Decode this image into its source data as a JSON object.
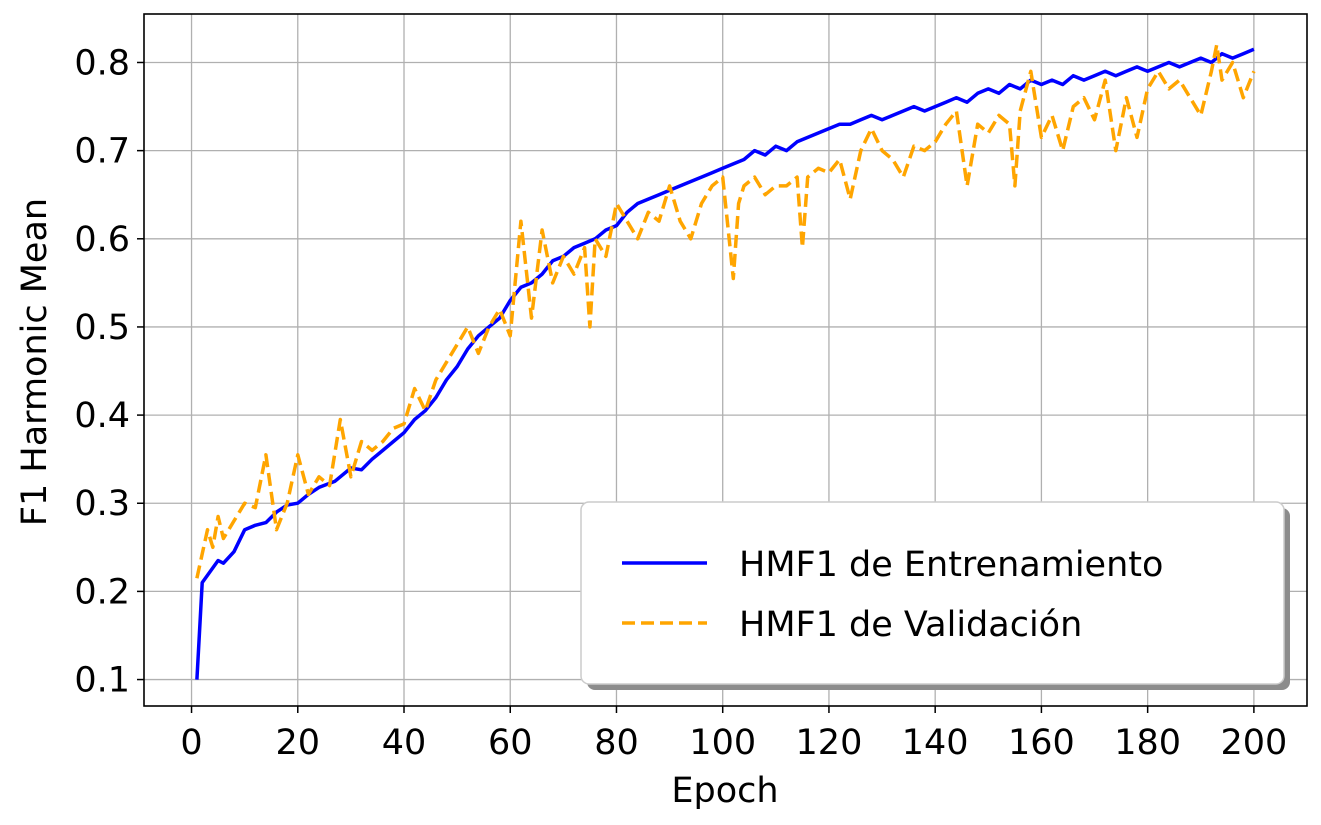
{
  "chart_data": {
    "type": "line",
    "title": "",
    "xlabel": "Epoch",
    "ylabel": "F1 Harmonic Mean",
    "xlim": [
      -8.95,
      210
    ],
    "ylim": [
      0.07,
      0.855
    ],
    "xticks": [
      0,
      20,
      40,
      60,
      80,
      100,
      120,
      140,
      160,
      180,
      200
    ],
    "yticks": [
      0.1,
      0.2,
      0.3,
      0.4,
      0.5,
      0.6,
      0.7,
      0.8
    ],
    "grid": true,
    "legend_position": "lower-right",
    "series": [
      {
        "name": "HMF1 de Entrenamiento",
        "color": "#0000ff",
        "style": "solid",
        "x": [
          1,
          2,
          5,
          6,
          8,
          10,
          12,
          14,
          16,
          18,
          20,
          22,
          24,
          27,
          30,
          32,
          34,
          36,
          38,
          40,
          42,
          44,
          46,
          48,
          50,
          52,
          54,
          56,
          58,
          60,
          62,
          64,
          66,
          68,
          70,
          72,
          74,
          76,
          78,
          80,
          82,
          84,
          86,
          88,
          90,
          92,
          94,
          96,
          98,
          100,
          102,
          104,
          106,
          108,
          110,
          112,
          114,
          116,
          118,
          120,
          122,
          124,
          126,
          128,
          130,
          132,
          134,
          136,
          138,
          140,
          142,
          144,
          146,
          148,
          150,
          152,
          154,
          156,
          158,
          160,
          162,
          164,
          166,
          168,
          170,
          172,
          174,
          176,
          178,
          180,
          182,
          184,
          186,
          188,
          190,
          192,
          194,
          196,
          198,
          200
        ],
        "y": [
          0.1,
          0.21,
          0.235,
          0.232,
          0.245,
          0.27,
          0.275,
          0.278,
          0.29,
          0.298,
          0.3,
          0.31,
          0.318,
          0.325,
          0.34,
          0.338,
          0.35,
          0.36,
          0.37,
          0.38,
          0.395,
          0.405,
          0.42,
          0.44,
          0.455,
          0.475,
          0.49,
          0.5,
          0.51,
          0.53,
          0.545,
          0.55,
          0.56,
          0.575,
          0.58,
          0.59,
          0.595,
          0.6,
          0.61,
          0.615,
          0.63,
          0.64,
          0.645,
          0.65,
          0.655,
          0.66,
          0.665,
          0.67,
          0.675,
          0.68,
          0.685,
          0.69,
          0.7,
          0.695,
          0.705,
          0.7,
          0.71,
          0.715,
          0.72,
          0.725,
          0.73,
          0.73,
          0.735,
          0.74,
          0.735,
          0.74,
          0.745,
          0.75,
          0.745,
          0.75,
          0.755,
          0.76,
          0.755,
          0.765,
          0.77,
          0.765,
          0.775,
          0.77,
          0.78,
          0.775,
          0.78,
          0.775,
          0.785,
          0.78,
          0.785,
          0.79,
          0.785,
          0.79,
          0.795,
          0.79,
          0.795,
          0.8,
          0.795,
          0.8,
          0.805,
          0.8,
          0.81,
          0.805,
          0.81,
          0.815
        ]
      },
      {
        "name": "HMF1 de Validación",
        "color": "#ffa500",
        "style": "dashed",
        "x": [
          1,
          3,
          4,
          5,
          6,
          7,
          8,
          10,
          12,
          14,
          16,
          18,
          20,
          22,
          24,
          26,
          28,
          30,
          32,
          34,
          36,
          38,
          40,
          42,
          44,
          46,
          48,
          50,
          52,
          54,
          56,
          58,
          60,
          62,
          64,
          66,
          68,
          70,
          72,
          74,
          75,
          76,
          78,
          80,
          82,
          84,
          86,
          88,
          90,
          92,
          94,
          96,
          98,
          100,
          102,
          103,
          104,
          106,
          108,
          110,
          112,
          114,
          115,
          116,
          118,
          120,
          122,
          124,
          126,
          128,
          130,
          132,
          134,
          136,
          138,
          140,
          142,
          144,
          146,
          148,
          150,
          152,
          154,
          155,
          156,
          158,
          160,
          162,
          164,
          166,
          168,
          170,
          172,
          174,
          176,
          178,
          180,
          182,
          184,
          186,
          188,
          190,
          192,
          193,
          194,
          196,
          198,
          200
        ],
        "y": [
          0.215,
          0.27,
          0.25,
          0.285,
          0.26,
          0.27,
          0.28,
          0.3,
          0.295,
          0.355,
          0.27,
          0.3,
          0.355,
          0.31,
          0.33,
          0.32,
          0.395,
          0.33,
          0.37,
          0.36,
          0.37,
          0.385,
          0.39,
          0.43,
          0.405,
          0.44,
          0.46,
          0.48,
          0.5,
          0.47,
          0.5,
          0.52,
          0.49,
          0.62,
          0.51,
          0.61,
          0.55,
          0.58,
          0.56,
          0.59,
          0.5,
          0.6,
          0.58,
          0.64,
          0.62,
          0.6,
          0.63,
          0.62,
          0.66,
          0.62,
          0.6,
          0.64,
          0.66,
          0.67,
          0.555,
          0.64,
          0.66,
          0.67,
          0.65,
          0.66,
          0.66,
          0.67,
          0.59,
          0.67,
          0.68,
          0.675,
          0.69,
          0.645,
          0.7,
          0.725,
          0.7,
          0.69,
          0.67,
          0.705,
          0.7,
          0.71,
          0.73,
          0.745,
          0.66,
          0.73,
          0.72,
          0.74,
          0.73,
          0.66,
          0.745,
          0.79,
          0.715,
          0.74,
          0.7,
          0.75,
          0.76,
          0.735,
          0.78,
          0.7,
          0.76,
          0.715,
          0.77,
          0.79,
          0.77,
          0.78,
          0.76,
          0.74,
          0.79,
          0.82,
          0.78,
          0.8,
          0.76,
          0.79
        ]
      }
    ]
  }
}
